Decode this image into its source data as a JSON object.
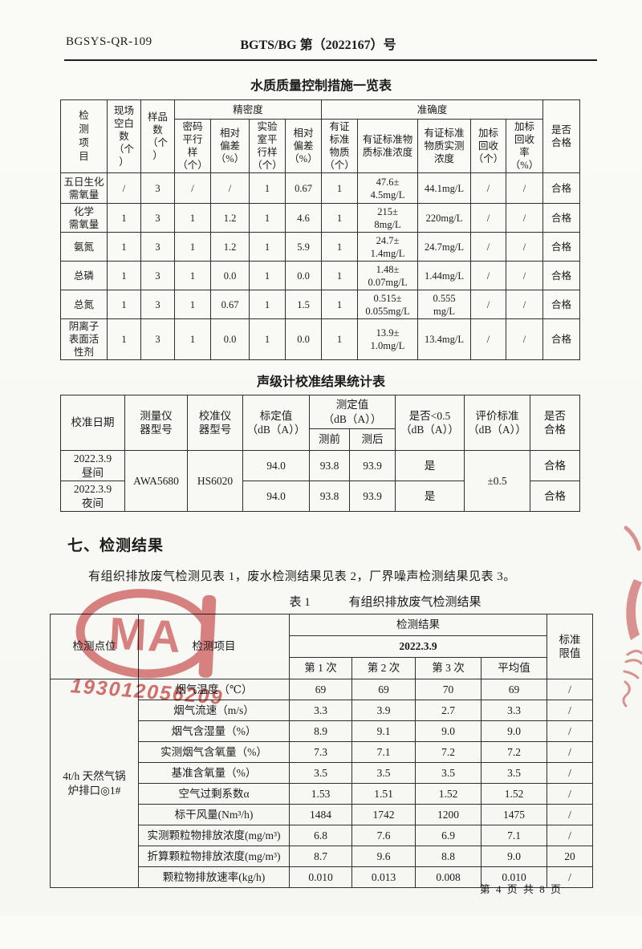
{
  "page": {
    "doc_code": "BGSYS-QR-109",
    "doc_number": "BGTS/BG 第（2022167）号",
    "footer": "第 4 页 共 8 页"
  },
  "stamps": {
    "cma_letters": "MA",
    "cma_number": "193012056209",
    "stamp_color": "#cc4b4b"
  },
  "section": {
    "heading": "七、检测结果",
    "paragraph": "有组织排放废气检测见表 1，废水检测结果见表 2，厂界噪声检测结果见表 3。"
  },
  "tables": {
    "water_qc": {
      "title": "水质质量控制措施一览表",
      "header_rows": [
        [
          {
            "t": "检\n测\n项\n目",
            "rs": 2,
            "cls": "vcell"
          },
          {
            "t": "现场\n空白\n数\n（个\n）",
            "rs": 2
          },
          {
            "t": "样品\n数\n（个\n）",
            "rs": 2
          },
          {
            "t": "精密度",
            "cs": 4
          },
          {
            "t": "准确度",
            "cs": 5
          },
          {
            "t": "是否\n合格",
            "rs": 2
          }
        ],
        [
          {
            "t": "密码\n平行\n样\n（个）"
          },
          {
            "t": "相对\n偏差\n（%）"
          },
          {
            "t": "实验\n室平\n行样\n（个）"
          },
          {
            "t": "相对\n偏差\n（%）"
          },
          {
            "t": "有证\n标准\n物质\n（个）"
          },
          {
            "t": "有证标准物\n质标准浓度"
          },
          {
            "t": "有证标准\n物质实测\n浓度"
          },
          {
            "t": "加标\n回收\n（个）"
          },
          {
            "t": "加标\n回收\n率\n（%）"
          }
        ]
      ],
      "body_rows": [
        [
          "五日生化\n需氧量",
          "/",
          "3",
          "/",
          "/",
          "1",
          "0.67",
          "1",
          "47.6±\n4.5mg/L",
          "44.1mg/L",
          "/",
          "/",
          "合格"
        ],
        [
          "化学\n需氧量",
          "1",
          "3",
          "1",
          "1.2",
          "1",
          "4.6",
          "1",
          "215±\n8mg/L",
          "220mg/L",
          "/",
          "/",
          "合格"
        ],
        [
          "氨氮",
          "1",
          "3",
          "1",
          "1.2",
          "1",
          "5.9",
          "1",
          "24.7±\n1.4mg/L",
          "24.7mg/L",
          "/",
          "/",
          "合格"
        ],
        [
          "总磷",
          "1",
          "3",
          "1",
          "0.0",
          "1",
          "0.0",
          "1",
          "1.48±\n0.07mg/L",
          "1.44mg/L",
          "/",
          "/",
          "合格"
        ],
        [
          "总氮",
          "1",
          "3",
          "1",
          "0.67",
          "1",
          "1.5",
          "1",
          "0.515±\n0.055mg/L",
          "0.555\nmg/L",
          "/",
          "/",
          "合格"
        ],
        [
          "阴离子\n表面活\n性剂",
          "1",
          "3",
          "1",
          "0.0",
          "1",
          "0.0",
          "1",
          "13.9±\n1.0mg/L",
          "13.4mg/L",
          "/",
          "/",
          "合格"
        ]
      ]
    },
    "sound_cal": {
      "title": "声级计校准结果统计表",
      "header_rows": [
        [
          {
            "t": "校准日期",
            "rs": 2
          },
          {
            "t": "测量仪\n器型号",
            "rs": 2
          },
          {
            "t": "校准仪\n器型号",
            "rs": 2
          },
          {
            "t": "标定值\n（dB（A））",
            "rs": 2
          },
          {
            "t": "测定值\n（dB（A））",
            "cs": 2
          },
          {
            "t": "是否<0.5\n（dB（A））",
            "rs": 2
          },
          {
            "t": "评价标准\n（dB（A））",
            "rs": 2
          },
          {
            "t": "是否\n合格",
            "rs": 2
          }
        ],
        [
          {
            "t": "测前"
          },
          {
            "t": "测后"
          }
        ]
      ],
      "body_rows": [
        [
          {
            "t": "2022.3.9\n昼间"
          },
          {
            "t": "AWA5680",
            "rs": 2
          },
          {
            "t": "HS6020",
            "rs": 2
          },
          {
            "t": "94.0"
          },
          {
            "t": "93.8"
          },
          {
            "t": "93.9"
          },
          {
            "t": "是"
          },
          {
            "t": "±0.5",
            "rs": 2
          },
          {
            "t": "合格"
          }
        ],
        [
          {
            "t": "2022.3.9\n夜间"
          },
          {
            "t": "94.0"
          },
          {
            "t": "93.8"
          },
          {
            "t": "93.9"
          },
          {
            "t": "是"
          },
          {
            "t": "合格"
          }
        ]
      ]
    },
    "gas_results": {
      "caption_label": "表 1",
      "caption_title": "有组织排放废气检测结果",
      "header_rows": [
        [
          {
            "t": "检测点位",
            "rs": 3
          },
          {
            "t": "检测项目",
            "rs": 3
          },
          {
            "t": "检测结果",
            "cs": 4
          },
          {
            "t": "标准\n限值",
            "rs": 3
          }
        ],
        [
          {
            "t": "2022.3.9",
            "cs": 4,
            "cls": "bold"
          }
        ],
        [
          {
            "t": "第 1 次"
          },
          {
            "t": "第 2 次"
          },
          {
            "t": "第 3 次"
          },
          {
            "t": "平均值"
          }
        ]
      ],
      "body_rows": [
        [
          {
            "t": "4t/h 天然气锅\n炉排口◎1#",
            "rs": 10
          },
          {
            "t": "烟气温度（℃）"
          },
          {
            "t": "69"
          },
          {
            "t": "69"
          },
          {
            "t": "70"
          },
          {
            "t": "69"
          },
          {
            "t": "/"
          }
        ],
        [
          {
            "t": "烟气流速（m/s）"
          },
          {
            "t": "3.3"
          },
          {
            "t": "3.9"
          },
          {
            "t": "2.7"
          },
          {
            "t": "3.3"
          },
          {
            "t": "/"
          }
        ],
        [
          {
            "t": "烟气含湿量（%）"
          },
          {
            "t": "8.9"
          },
          {
            "t": "9.1"
          },
          {
            "t": "9.0"
          },
          {
            "t": "9.0"
          },
          {
            "t": "/"
          }
        ],
        [
          {
            "t": "实测烟气含氧量（%）"
          },
          {
            "t": "7.3"
          },
          {
            "t": "7.1"
          },
          {
            "t": "7.2"
          },
          {
            "t": "7.2"
          },
          {
            "t": "/"
          }
        ],
        [
          {
            "t": "基准含氧量（%）"
          },
          {
            "t": "3.5"
          },
          {
            "t": "3.5"
          },
          {
            "t": "3.5"
          },
          {
            "t": "3.5"
          },
          {
            "t": "/"
          }
        ],
        [
          {
            "t": "空气过剩系数α"
          },
          {
            "t": "1.53"
          },
          {
            "t": "1.51"
          },
          {
            "t": "1.52"
          },
          {
            "t": "1.52"
          },
          {
            "t": "/"
          }
        ],
        [
          {
            "t": "标干风量(Nm³/h)"
          },
          {
            "t": "1484"
          },
          {
            "t": "1742"
          },
          {
            "t": "1200"
          },
          {
            "t": "1475"
          },
          {
            "t": "/"
          }
        ],
        [
          {
            "t": "实测颗粒物排放浓度(mg/m³)"
          },
          {
            "t": "6.8"
          },
          {
            "t": "7.6"
          },
          {
            "t": "6.9"
          },
          {
            "t": "7.1"
          },
          {
            "t": "/"
          }
        ],
        [
          {
            "t": "折算颗粒物排放浓度(mg/m³)"
          },
          {
            "t": "8.7"
          },
          {
            "t": "9.6"
          },
          {
            "t": "8.8"
          },
          {
            "t": "9.0"
          },
          {
            "t": "20"
          }
        ],
        [
          {
            "t": "颗粒物排放速率(kg/h)"
          },
          {
            "t": "0.010"
          },
          {
            "t": "0.013"
          },
          {
            "t": "0.008"
          },
          {
            "t": "0.010"
          },
          {
            "t": "/"
          }
        ]
      ]
    }
  }
}
